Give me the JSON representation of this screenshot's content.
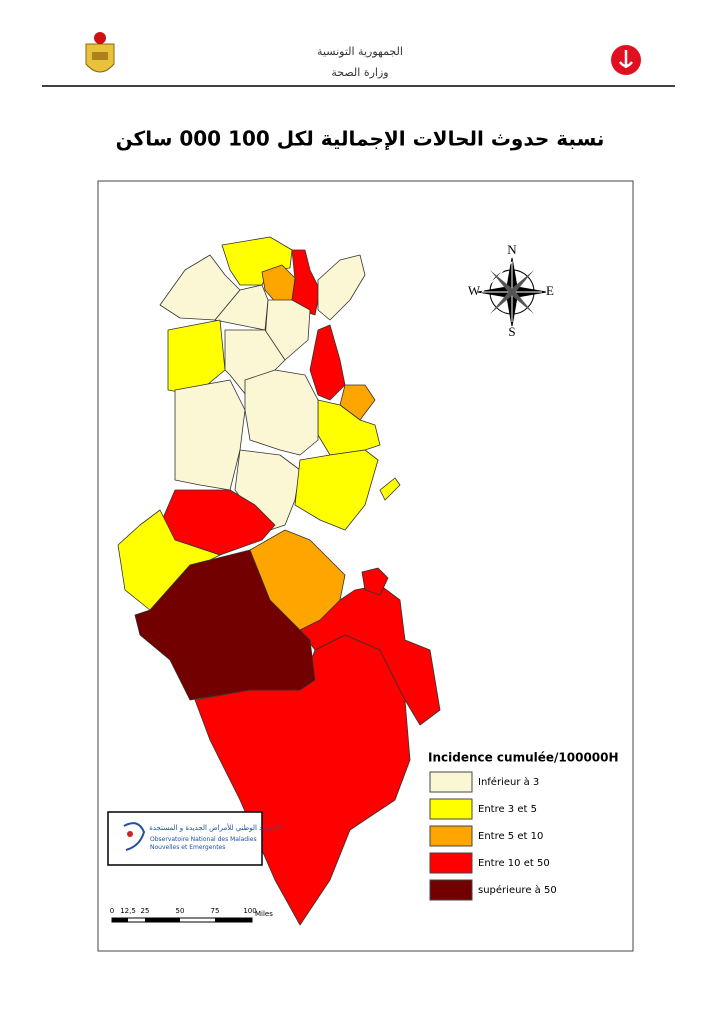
{
  "header": {
    "line1": "الجمهورية التونسية",
    "line2": "وزارة الصحة"
  },
  "title": "نسبة حدوث الحالات الإجمالية لكل 100 000 ساكن",
  "compass": {
    "n": "N",
    "e": "E",
    "s": "S",
    "w": "W"
  },
  "legend": {
    "title": "Incidence cumulée/100000H",
    "items": [
      {
        "label": "Inférieur à 3",
        "color": "#fbf6d3"
      },
      {
        "label": "Entre 3 et 5",
        "color": "#ffff00"
      },
      {
        "label": "Entre 5 et 10",
        "color": "#ffa500"
      },
      {
        "label": "Entre 10 et 50",
        "color": "#ff0000"
      },
      {
        "label": "supérieure à 50",
        "color": "#730000"
      }
    ]
  },
  "logo": {
    "arabic": "المرصد الوطني للأمراض الجديدة و المستجدة",
    "french": "Observatoire National des Maladies Nouvelles et Emergentes"
  },
  "scale": {
    "ticks": [
      "0",
      "12,5",
      "25",
      "50",
      "75",
      "100"
    ],
    "unit": "Miles"
  }
}
